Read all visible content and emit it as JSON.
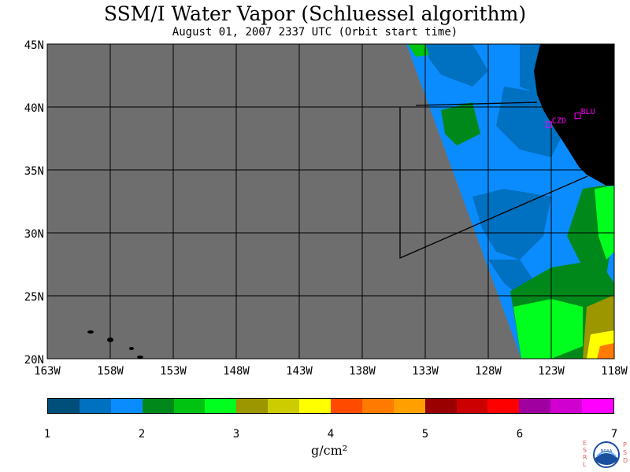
{
  "title": "SSM/I Water Vapor (Schluessel algorithm)",
  "subtitle": "August 01, 2007  2337 UTC  (Orbit start time)",
  "map": {
    "lat_labels": [
      "45N",
      "40N",
      "35N",
      "30N",
      "25N",
      "20N"
    ],
    "lon_labels": [
      "163W",
      "158W",
      "153W",
      "148W",
      "143W",
      "138W",
      "133W",
      "128W",
      "123W",
      "118W"
    ],
    "stations": [
      {
        "code": "CZD",
        "lat": 38.6,
        "lon": -123.2
      },
      {
        "code": "BLU",
        "lat": 39.3,
        "lon": -120.9
      }
    ],
    "colors": {
      "no_data": "#6e6e6e",
      "land": "#000000",
      "grid": "#000000",
      "station": "#ff00ff"
    }
  },
  "legend": {
    "unit": "g/cm²",
    "ticks": [
      "1",
      "2",
      "3",
      "4",
      "5",
      "6",
      "7"
    ],
    "colors": [
      "#004e7a",
      "#0070c0",
      "#0a8cff",
      "#00891a",
      "#00c210",
      "#00ff1e",
      "#9c9600",
      "#cccc00",
      "#ffff00",
      "#ff4a00",
      "#ff7a00",
      "#ffa000",
      "#9a0000",
      "#cc0000",
      "#ff0000",
      "#a000a0",
      "#d000d0",
      "#ff00ff"
    ]
  },
  "logo": {
    "left_letters": "ESRL",
    "right_letters": "PSD",
    "center_text": "NOAA"
  }
}
